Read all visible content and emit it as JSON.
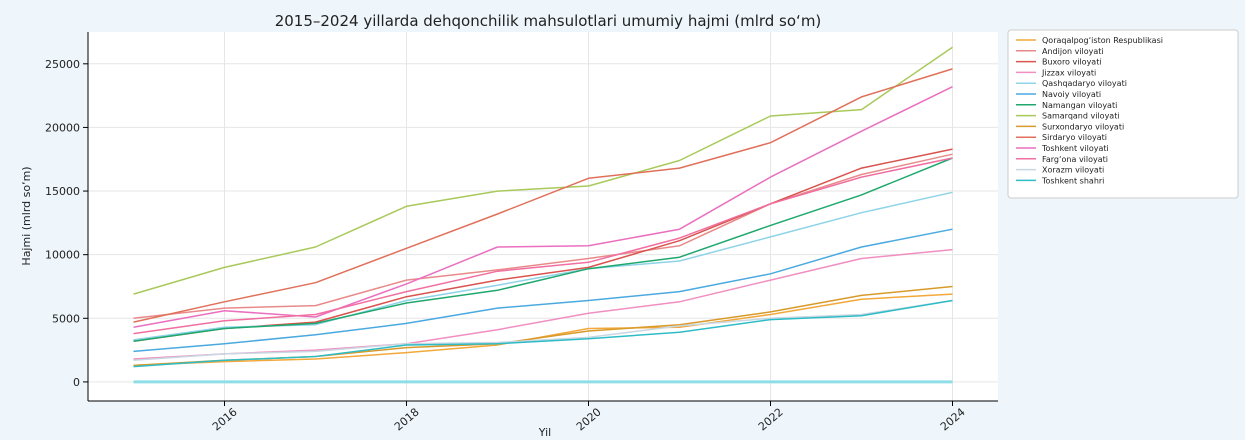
{
  "chart_data": {
    "type": "line",
    "title": "2015–2024 yillarda dehqonchilik mahsulotlari umumiy hajmi (mlrd so‘m)",
    "xlabel": "Yil",
    "ylabel": "Hajmi (mlrd so‘m)",
    "xlim": [
      2014.5,
      2024.5
    ],
    "ylim": [
      -1500,
      27500
    ],
    "xticks": [
      2016,
      2018,
      2020,
      2022,
      2024
    ],
    "yticks": [
      0,
      5000,
      10000,
      15000,
      20000,
      25000
    ],
    "grid": true,
    "legend_position": "right",
    "x": [
      2015,
      2016,
      2017,
      2018,
      2019,
      2020,
      2021,
      2022,
      2023,
      2024
    ],
    "series": [
      {
        "name": "Qoraqalpog‘iston Respublikasi",
        "color": "#f2a83a",
        "values": [
          1300,
          1600,
          1800,
          2300,
          2900,
          4200,
          4300,
          5300,
          6500,
          6900
        ]
      },
      {
        "name": "Andijon viloyati",
        "color": "#e98a8a",
        "values": [
          5000,
          5800,
          6000,
          8000,
          8800,
          9700,
          10700,
          14000,
          16300,
          17900
        ]
      },
      {
        "name": "Buxoro viloyati",
        "color": "#d9534f",
        "values": [
          3200,
          4200,
          4700,
          6700,
          8000,
          9000,
          11100,
          14000,
          16800,
          18300
        ]
      },
      {
        "name": "Jizzax viloyati",
        "color": "#f08fc0",
        "values": [
          1800,
          2200,
          2500,
          3000,
          4100,
          5400,
          6300,
          8000,
          9700,
          10400
        ]
      },
      {
        "name": "Qashqadaryo viloyati",
        "color": "#8ed3e8",
        "values": [
          3300,
          4300,
          4500,
          6400,
          7600,
          8900,
          9500,
          11400,
          13300,
          14900
        ]
      },
      {
        "name": "Navoiy viloyati",
        "color": "#4aa9e0",
        "values": [
          2400,
          3000,
          3700,
          4600,
          5800,
          6400,
          7100,
          8500,
          10600,
          12000
        ]
      },
      {
        "name": "Namangan viloyati",
        "color": "#1fa86e",
        "values": [
          3200,
          4200,
          4600,
          6200,
          7200,
          8900,
          9800,
          12300,
          14700,
          17600
        ]
      },
      {
        "name": "Samarqand viloyati",
        "color": "#a9c95a",
        "values": [
          6900,
          9000,
          10600,
          13800,
          15000,
          15400,
          17400,
          20900,
          21400,
          26300
        ]
      },
      {
        "name": "Surxondaryo viloyati",
        "color": "#d89a2b",
        "values": [
          1300,
          1700,
          2000,
          2700,
          3000,
          4000,
          4500,
          5500,
          6800,
          7500
        ]
      },
      {
        "name": "Sirdaryo viloyati",
        "color": "#e0705a",
        "values": [
          4700,
          6300,
          7800,
          10500,
          13200,
          16000,
          16800,
          18800,
          22400,
          24600
        ]
      },
      {
        "name": "Toshkent viloyati",
        "color": "#ea6fbf",
        "values": [
          4300,
          5600,
          5100,
          7700,
          10600,
          10700,
          12000,
          16100,
          19700,
          23200
        ]
      },
      {
        "name": "Farg‘ona viloyati",
        "color": "#f06fa0",
        "values": [
          3800,
          4800,
          5300,
          7100,
          8700,
          9400,
          11300,
          14000,
          16100,
          17600
        ]
      },
      {
        "name": "Xorazm viloyati",
        "color": "#c8d7e2",
        "values": [
          1700,
          2200,
          2400,
          3000,
          3100,
          3500,
          4400,
          5000,
          5300,
          6400
        ]
      },
      {
        "name": "Toshkent shahri",
        "color": "#2ebcc6",
        "values": [
          1200,
          1700,
          2000,
          2900,
          3000,
          3400,
          3900,
          4900,
          5200,
          6400
        ]
      },
      {
        "name": "",
        "color": "#8fdde6",
        "values": [
          0,
          0,
          0,
          0,
          0,
          0,
          0,
          0,
          0,
          0
        ]
      }
    ]
  }
}
